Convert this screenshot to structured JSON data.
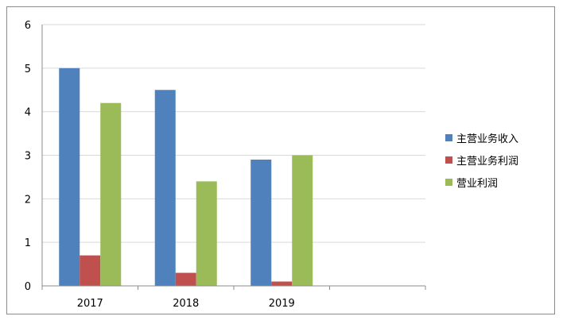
{
  "chart_data": {
    "type": "bar",
    "categories": [
      "2017",
      "2018",
      "2019",
      ""
    ],
    "series": [
      {
        "name": "主营业务收入",
        "color": "#4f81bd",
        "values": [
          5.0,
          4.5,
          2.9,
          null
        ]
      },
      {
        "name": "主营业务利润",
        "color": "#c0504d",
        "values": [
          0.7,
          0.3,
          0.1,
          null
        ]
      },
      {
        "name": "营业利润",
        "color": "#9bbb59",
        "values": [
          4.2,
          2.4,
          3.0,
          null
        ]
      }
    ],
    "ylim": [
      0,
      6
    ],
    "yticks": [
      "0",
      "1",
      "2",
      "3",
      "4",
      "5",
      "6"
    ],
    "grid": true,
    "legend_position": "right"
  }
}
